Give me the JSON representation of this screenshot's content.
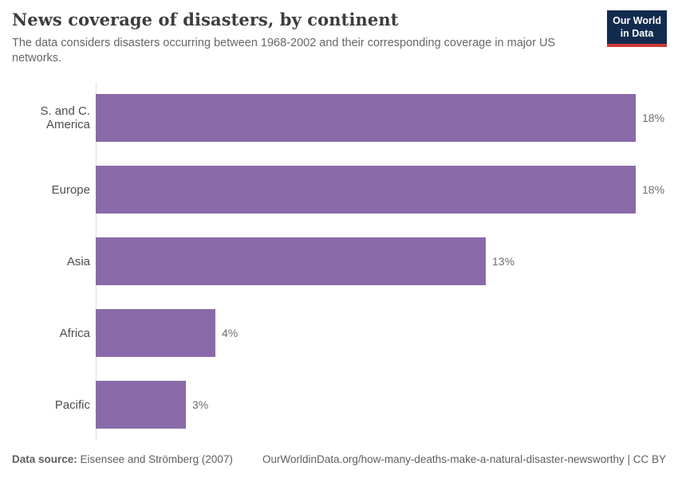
{
  "header": {
    "title": "News coverage of disasters, by continent",
    "subtitle": "The data considers disasters occurring between 1968-2002 and their corresponding coverage in major US networks.",
    "logo": {
      "line1": "Our World",
      "line2": "in Data",
      "bg_color": "#122b4e",
      "accent_color": "#cc3b34"
    }
  },
  "chart_data": {
    "type": "bar",
    "orientation": "horizontal",
    "title": "News coverage of disasters, by continent",
    "subtitle": "The data considers disasters occurring between 1968-2002 and their corresponding coverage in major US networks.",
    "categories": [
      "S. and C. America",
      "Europe",
      "Asia",
      "Africa",
      "Pacific"
    ],
    "values": [
      18,
      18,
      13,
      4,
      3
    ],
    "value_labels": [
      "18%",
      "18%",
      "13%",
      "4%",
      "3%"
    ],
    "unit": "%",
    "xlim": [
      0,
      18
    ],
    "bar_color": "#8a69a8",
    "grid": false,
    "legend": "none",
    "value_label_position": "right-of-bar"
  },
  "footer": {
    "datasource_label": "Data source:",
    "datasource_value": "Eisensee and Strömberg (2007)",
    "url_text": "OurWorldinData.org/how-many-deaths-make-a-natural-disaster-newsworthy | CC BY"
  }
}
